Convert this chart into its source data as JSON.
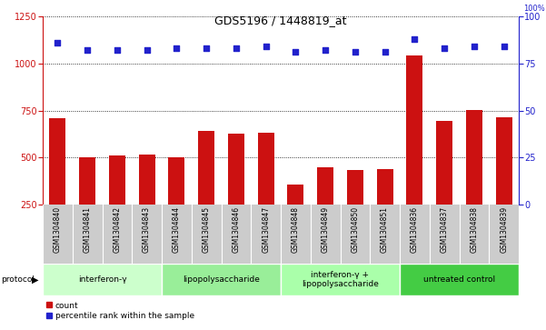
{
  "title": "GDS5196 / 1448819_at",
  "samples": [
    "GSM1304840",
    "GSM1304841",
    "GSM1304842",
    "GSM1304843",
    "GSM1304844",
    "GSM1304845",
    "GSM1304846",
    "GSM1304847",
    "GSM1304848",
    "GSM1304849",
    "GSM1304850",
    "GSM1304851",
    "GSM1304836",
    "GSM1304837",
    "GSM1304838",
    "GSM1304839"
  ],
  "counts": [
    710,
    500,
    510,
    515,
    500,
    640,
    625,
    630,
    355,
    450,
    435,
    440,
    1040,
    695,
    750,
    715
  ],
  "percentile_ranks": [
    86,
    82,
    82,
    82,
    83,
    83,
    83,
    84,
    81,
    82,
    81,
    81,
    88,
    83,
    84,
    84
  ],
  "groups": [
    {
      "label": "interferon-γ",
      "start": 0,
      "end": 4,
      "color": "#ccffcc"
    },
    {
      "label": "lipopolysaccharide",
      "start": 4,
      "end": 8,
      "color": "#99ee99"
    },
    {
      "label": "interferon-γ +\nlipopolysaccharide",
      "start": 8,
      "end": 12,
      "color": "#aaffaa"
    },
    {
      "label": "untreated control",
      "start": 12,
      "end": 16,
      "color": "#44cc44"
    }
  ],
  "ylim_left": [
    250,
    1250
  ],
  "ylim_right": [
    0,
    100
  ],
  "yticks_left": [
    250,
    500,
    750,
    1000,
    1250
  ],
  "yticks_right": [
    0,
    25,
    50,
    75,
    100
  ],
  "bar_color": "#cc1111",
  "dot_color": "#2222cc",
  "plot_bg": "#ffffff",
  "label_bg": "#cccccc",
  "fig_bg": "#ffffff"
}
